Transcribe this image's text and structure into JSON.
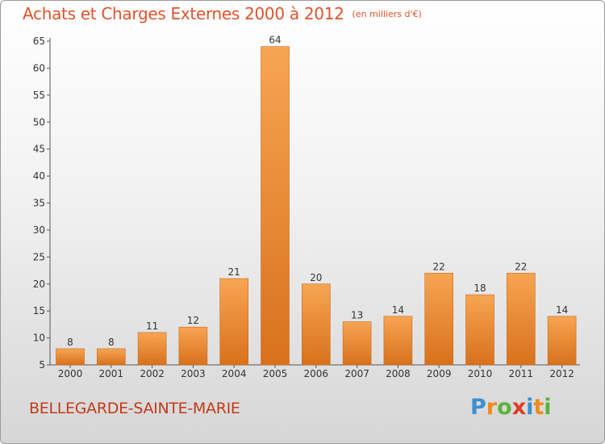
{
  "title": "Achats et Charges Externes 2000 à 2012",
  "unit": "(en milliers d'€)",
  "commune": "BELLEGARDE-SAINTE-MARIE",
  "brand": {
    "letters": [
      "P",
      "r",
      "o",
      "x",
      "i",
      "t",
      "i"
    ],
    "colors": [
      "#3a8fd0",
      "#f08a1c",
      "#5bb33a",
      "#e23b2a",
      "#3a8fd0",
      "#f08a1c",
      "#5bb33a"
    ]
  },
  "colors": {
    "bar_light": "#f7a552",
    "bar_dark": "#d8711c",
    "bar_edge": "#c96a1d"
  },
  "chart_data": {
    "type": "bar",
    "categories": [
      "2000",
      "2001",
      "2002",
      "2003",
      "2004",
      "2005",
      "2006",
      "2007",
      "2008",
      "2009",
      "2010",
      "2011",
      "2012"
    ],
    "values": [
      8,
      8,
      11,
      12,
      21,
      64,
      20,
      13,
      14,
      22,
      18,
      22,
      14
    ],
    "ylim": [
      5,
      65
    ],
    "yticks": [
      5,
      10,
      15,
      20,
      25,
      30,
      35,
      40,
      45,
      50,
      55,
      60,
      65
    ],
    "grid": false,
    "legend": "none"
  }
}
